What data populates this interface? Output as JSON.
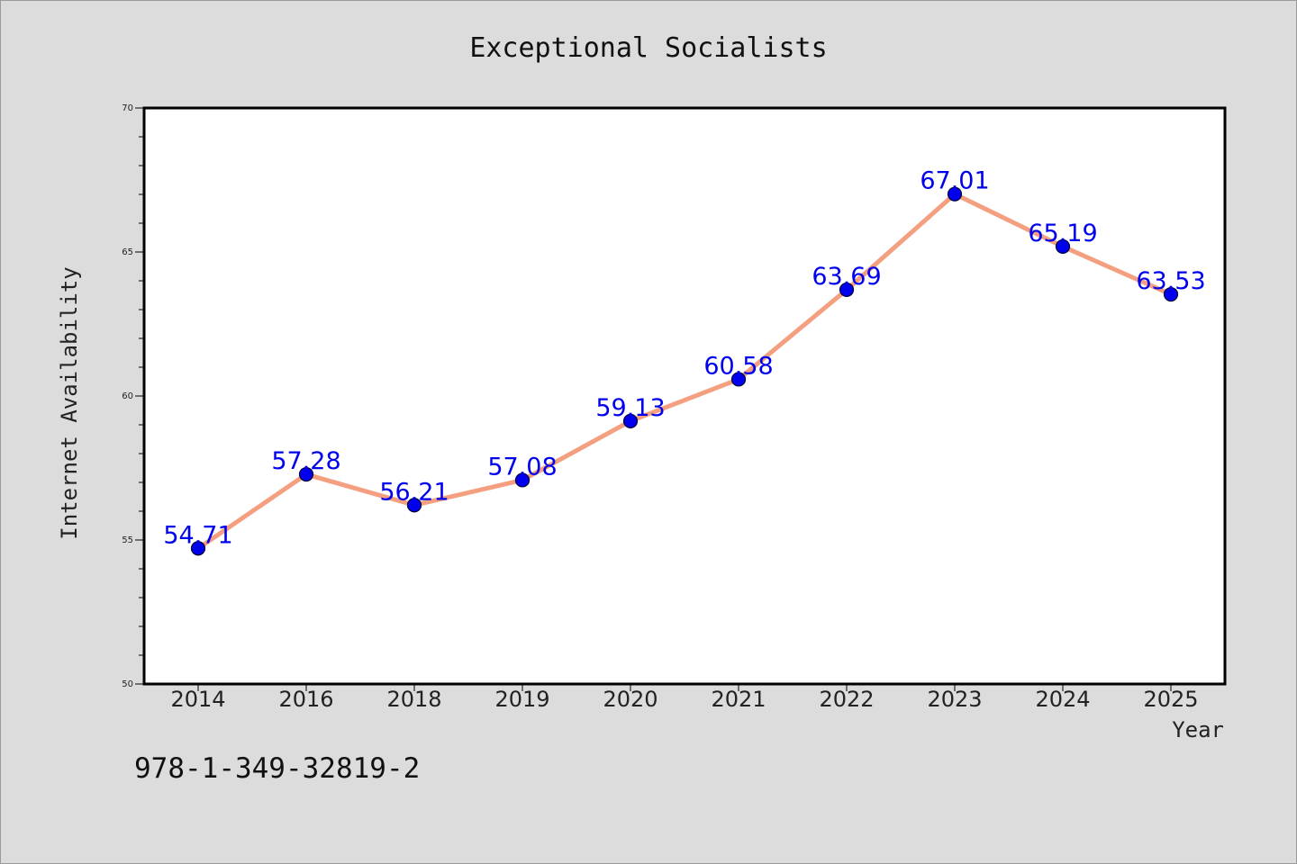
{
  "chart_data": {
    "type": "line",
    "title": "Exceptional Socialists",
    "xlabel": "Year",
    "ylabel": "Internet Availability",
    "categories": [
      "2014",
      "2016",
      "2018",
      "2019",
      "2020",
      "2021",
      "2022",
      "2023",
      "2024",
      "2025"
    ],
    "values": [
      54.71,
      57.28,
      56.21,
      57.08,
      59.13,
      60.58,
      63.69,
      67.01,
      65.19,
      63.53
    ],
    "data_labels": [
      "54.71",
      "57.28",
      "56.21",
      "57.08",
      "59.13",
      "60.58",
      "63.69",
      "67.01",
      "65.19",
      "63.53"
    ],
    "ylim": [
      50,
      70
    ],
    "yticks": [
      50,
      55,
      60,
      65,
      70
    ],
    "ytick_labels": [
      "50",
      "55",
      "60",
      "65",
      "70"
    ],
    "grid": false,
    "colors": {
      "line": "#f4a080",
      "marker": "#0000ee",
      "marker_edge": "#000033",
      "data_label": "#0000ee",
      "plot_background": "#ffffff",
      "figure_background": "#dcdcdc"
    }
  },
  "footnote": "978-1-349-32819-2"
}
